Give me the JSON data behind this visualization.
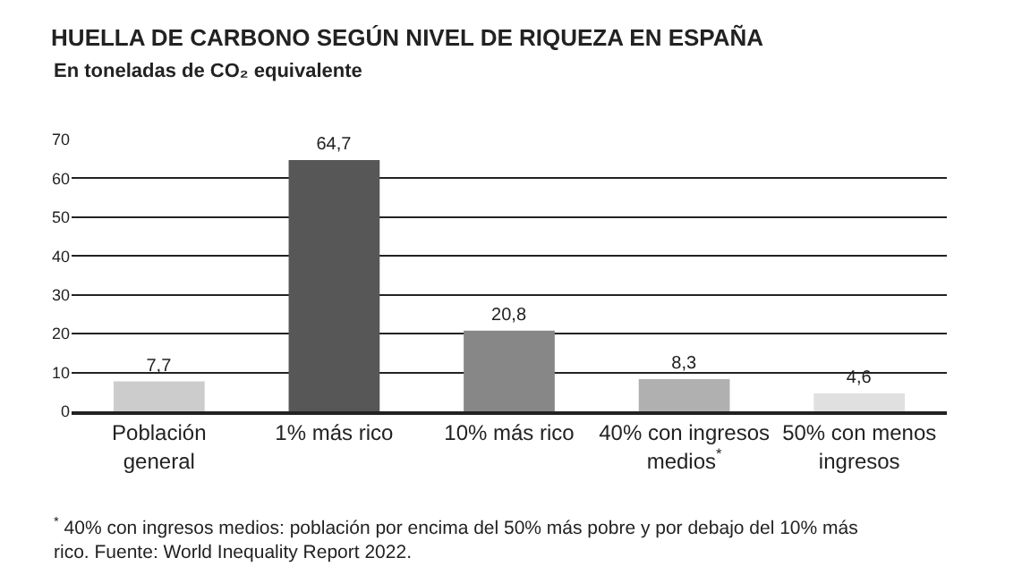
{
  "chart_data": {
    "type": "bar",
    "title": "HUELLA DE CARBONO SEGÚN NIVEL DE RIQUEZA EN ESPAÑA",
    "subtitle": "En toneladas de CO₂ equivalente",
    "categories": [
      "Población\ngeneral",
      "1% más rico",
      "10% más rico",
      "40% con ingresos\nmedios$^{*}$",
      "50% con menos\ningresos"
    ],
    "values": [
      7.7,
      64.7,
      20.8,
      8.3,
      4.6
    ],
    "colors": [
      "#cccccc",
      "#575757",
      "#878787",
      "#b0b0b0",
      "#e0e0e0"
    ],
    "value_labels": [
      "7,7",
      "64,7",
      "20,8",
      "8,3",
      "4,6"
    ],
    "ylim": [
      0,
      70
    ],
    "yticks": [
      0,
      10,
      20,
      30,
      40,
      50,
      60,
      70
    ],
    "grid": "y",
    "legend": false,
    "annotations": [
      "$^{*}$ 40% con ingresos medios: población por encima del 50% más pobre y por debajo del 10% más\nrico. Fuente: World Inequality Report 2022."
    ]
  }
}
